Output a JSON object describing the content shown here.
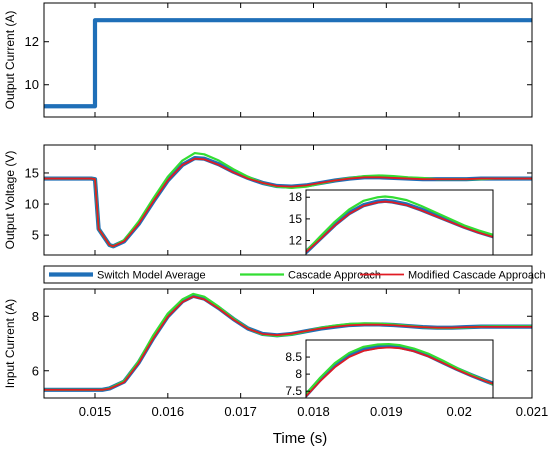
{
  "chart_data": {
    "type": "line",
    "xlabel": "Time (s)",
    "xlim": [
      0.0143,
      0.021
    ],
    "xticks": [
      0.015,
      0.016,
      0.017,
      0.018,
      0.019,
      0.02,
      0.021
    ],
    "xtick_labels": [
      "0.015",
      "0.016",
      "0.017",
      "0.018",
      "0.019",
      "0.02",
      "0.021"
    ],
    "legend": {
      "placement": "between panels 2 and 3",
      "entries": [
        {
          "name": "Switch Model Average",
          "color": "#1f6fb8"
        },
        {
          "name": "Cascade Approach",
          "color": "#33dd33"
        },
        {
          "name": "Modified Cascade Approach",
          "color": "#e01b24"
        }
      ]
    },
    "panels": [
      {
        "id": "output-current",
        "ylabel": "Output Current (A)",
        "ylim": [
          8.5,
          13.8
        ],
        "yticks": [
          10,
          12
        ],
        "series": [
          {
            "name": "Switch Model Average",
            "x": [
              0.0143,
              0.015,
              0.015,
              0.021
            ],
            "y": [
              9,
              9,
              13,
              13
            ]
          }
        ]
      },
      {
        "id": "output-voltage",
        "ylabel": "Output Voltage (V)",
        "ylim": [
          1.8,
          19.5
        ],
        "yticks": [
          5,
          10,
          15
        ],
        "series": [
          {
            "name": "Switch Model Average",
            "x": [
              0.0143,
              0.01495,
              0.015,
              0.01505,
              0.0152,
              0.01525,
              0.0154,
              0.0156,
              0.0158,
              0.016,
              0.0162,
              0.01637,
              0.0165,
              0.0167,
              0.0169,
              0.0171,
              0.0173,
              0.0175,
              0.0177,
              0.0179,
              0.0181,
              0.0183,
              0.0185,
              0.0187,
              0.0189,
              0.0191,
              0.0193,
              0.0195,
              0.0197,
              0.0199,
              0.0201,
              0.0203,
              0.0205,
              0.0207,
              0.021
            ],
            "y": [
              14.1,
              14.1,
              14.0,
              6.0,
              3.4,
              3.2,
              4.0,
              6.8,
              10.4,
              13.8,
              16.3,
              17.4,
              17.3,
              16.4,
              15.2,
              14.2,
              13.4,
              12.9,
              12.8,
              13.0,
              13.4,
              13.8,
              14.1,
              14.3,
              14.3,
              14.2,
              14.1,
              14.0,
              14.0,
              14.0,
              14.0,
              14.1,
              14.1,
              14.1,
              14.1
            ]
          },
          {
            "name": "Cascade Approach",
            "x": [
              0.0143,
              0.01495,
              0.015,
              0.01505,
              0.0152,
              0.01525,
              0.0154,
              0.0156,
              0.0158,
              0.016,
              0.0162,
              0.01637,
              0.0165,
              0.0167,
              0.0169,
              0.0171,
              0.0173,
              0.0175,
              0.0177,
              0.0179,
              0.0181,
              0.0183,
              0.0185,
              0.0187,
              0.0189,
              0.0191,
              0.0193,
              0.0195,
              0.0197,
              0.0199,
              0.0201,
              0.0203,
              0.0205,
              0.0207,
              0.021
            ],
            "y": [
              14.1,
              14.1,
              14.0,
              6.0,
              3.4,
              3.2,
              4.2,
              7.2,
              10.9,
              14.4,
              17.0,
              18.2,
              18.0,
              17.0,
              15.6,
              14.4,
              13.4,
              12.8,
              12.6,
              12.8,
              13.3,
              13.8,
              14.2,
              14.5,
              14.6,
              14.5,
              14.3,
              14.2,
              14.0,
              14.0,
              14.0,
              14.0,
              14.1,
              14.1,
              14.1
            ]
          },
          {
            "name": "Modified Cascade Approach",
            "x": [
              0.0143,
              0.01495,
              0.015,
              0.01505,
              0.0152,
              0.01525,
              0.0154,
              0.0156,
              0.0158,
              0.016,
              0.0162,
              0.01637,
              0.0165,
              0.0167,
              0.0169,
              0.0171,
              0.0173,
              0.0175,
              0.0177,
              0.0179,
              0.0181,
              0.0183,
              0.0185,
              0.0187,
              0.0189,
              0.0191,
              0.0193,
              0.0195,
              0.0197,
              0.0199,
              0.0201,
              0.0203,
              0.0205,
              0.0207,
              0.021
            ],
            "y": [
              14.1,
              14.1,
              14.0,
              6.0,
              3.4,
              3.2,
              4.0,
              6.8,
              10.4,
              13.8,
              16.3,
              17.3,
              17.2,
              16.3,
              15.1,
              14.1,
              13.4,
              12.9,
              12.8,
              13.0,
              13.4,
              13.8,
              14.1,
              14.3,
              14.3,
              14.2,
              14.1,
              14.0,
              14.0,
              14.0,
              14.0,
              14.1,
              14.1,
              14.1,
              14.1
            ]
          }
        ],
        "inset": {
          "xlim": [
            0.0179,
            0.0205
          ],
          "ylim": [
            10,
            19
          ],
          "yticks": [
            12,
            15,
            18
          ],
          "series": [
            {
              "name": "Switch Model Average",
              "x": [
                0.0179,
                0.0181,
                0.0183,
                0.0185,
                0.0187,
                0.0189,
                0.019,
                0.0191,
                0.0193,
                0.0195,
                0.0197,
                0.0199,
                0.0201,
                0.0203,
                0.0205
              ],
              "y": [
                10.4,
                12.3,
                14.2,
                15.8,
                16.9,
                17.4,
                17.5,
                17.4,
                17.0,
                16.3,
                15.5,
                14.7,
                13.9,
                13.2,
                12.6
              ]
            },
            {
              "name": "Cascade Approach",
              "x": [
                0.0179,
                0.0181,
                0.0183,
                0.0185,
                0.0187,
                0.0189,
                0.019,
                0.0191,
                0.0193,
                0.0195,
                0.0197,
                0.0199,
                0.0201,
                0.0203,
                0.0205
              ],
              "y": [
                10.5,
                12.6,
                14.6,
                16.3,
                17.5,
                18.0,
                18.1,
                18.0,
                17.6,
                16.8,
                15.9,
                15.0,
                14.1,
                13.4,
                12.8
              ]
            },
            {
              "name": "Modified Cascade Approach",
              "x": [
                0.0179,
                0.0181,
                0.0183,
                0.0185,
                0.0187,
                0.0189,
                0.019,
                0.0191,
                0.0193,
                0.0195,
                0.0197,
                0.0199,
                0.0201,
                0.0203,
                0.0205
              ],
              "y": [
                10.4,
                12.2,
                14.1,
                15.7,
                16.8,
                17.3,
                17.4,
                17.3,
                16.9,
                16.2,
                15.4,
                14.6,
                13.8,
                13.1,
                12.5
              ]
            }
          ]
        }
      },
      {
        "id": "input-current",
        "ylabel": "Input Current (A)",
        "ylim": [
          5.0,
          9.0
        ],
        "yticks": [
          6,
          8
        ],
        "series": [
          {
            "name": "Switch Model Average",
            "x": [
              0.0143,
              0.0151,
              0.0152,
              0.0154,
              0.0156,
              0.0158,
              0.016,
              0.0162,
              0.01635,
              0.0165,
              0.0167,
              0.0169,
              0.0171,
              0.0173,
              0.0175,
              0.0177,
              0.0179,
              0.0181,
              0.0183,
              0.0185,
              0.0187,
              0.0189,
              0.0191,
              0.0193,
              0.0195,
              0.0197,
              0.0199,
              0.0201,
              0.0203,
              0.0205,
              0.0207,
              0.021
            ],
            "y": [
              5.3,
              5.3,
              5.35,
              5.6,
              6.3,
              7.2,
              8.0,
              8.55,
              8.75,
              8.65,
              8.3,
              7.9,
              7.55,
              7.35,
              7.3,
              7.35,
              7.45,
              7.55,
              7.62,
              7.68,
              7.7,
              7.7,
              7.68,
              7.64,
              7.6,
              7.58,
              7.58,
              7.6,
              7.62,
              7.62,
              7.62,
              7.62
            ]
          },
          {
            "name": "Cascade Approach",
            "x": [
              0.0143,
              0.0151,
              0.0152,
              0.0154,
              0.0156,
              0.0158,
              0.016,
              0.0162,
              0.01635,
              0.0165,
              0.0167,
              0.0169,
              0.0171,
              0.0173,
              0.0175,
              0.0177,
              0.0179,
              0.0181,
              0.0183,
              0.0185,
              0.0187,
              0.0189,
              0.0191,
              0.0193,
              0.0195,
              0.0197,
              0.0199,
              0.0201,
              0.0203,
              0.0205,
              0.0207,
              0.021
            ],
            "y": [
              5.3,
              5.3,
              5.35,
              5.62,
              6.35,
              7.3,
              8.1,
              8.62,
              8.82,
              8.72,
              8.35,
              7.92,
              7.55,
              7.33,
              7.28,
              7.33,
              7.45,
              7.58,
              7.66,
              7.72,
              7.74,
              7.73,
              7.7,
              7.65,
              7.6,
              7.57,
              7.57,
              7.59,
              7.62,
              7.63,
              7.63,
              7.63
            ]
          },
          {
            "name": "Modified Cascade Approach",
            "x": [
              0.0143,
              0.0151,
              0.0152,
              0.0154,
              0.0156,
              0.0158,
              0.016,
              0.0162,
              0.01635,
              0.0165,
              0.0167,
              0.0169,
              0.0171,
              0.0173,
              0.0175,
              0.0177,
              0.0179,
              0.0181,
              0.0183,
              0.0185,
              0.0187,
              0.0189,
              0.0191,
              0.0193,
              0.0195,
              0.0197,
              0.0199,
              0.0201,
              0.0203,
              0.0205,
              0.0207,
              0.021
            ],
            "y": [
              5.3,
              5.3,
              5.34,
              5.58,
              6.28,
              7.18,
              7.98,
              8.52,
              8.72,
              8.62,
              8.28,
              7.88,
              7.54,
              7.35,
              7.31,
              7.36,
              7.46,
              7.55,
              7.62,
              7.67,
              7.69,
              7.69,
              7.67,
              7.63,
              7.6,
              7.58,
              7.58,
              7.6,
              7.61,
              7.61,
              7.61,
              7.61
            ]
          }
        ],
        "inset": {
          "xlim": [
            0.0179,
            0.0205
          ],
          "ylim": [
            7.3,
            9.0
          ],
          "yticks": [
            7.5,
            8,
            8.5
          ],
          "series": [
            {
              "name": "Switch Model Average",
              "x": [
                0.0179,
                0.0181,
                0.0183,
                0.0185,
                0.0187,
                0.0189,
                0.01905,
                0.0192,
                0.0194,
                0.0196,
                0.0198,
                0.02,
                0.0202,
                0.0204,
                0.0205
              ],
              "y": [
                7.38,
                7.85,
                8.25,
                8.55,
                8.72,
                8.8,
                8.82,
                8.8,
                8.7,
                8.55,
                8.35,
                8.15,
                7.97,
                7.8,
                7.72
              ]
            },
            {
              "name": "Cascade Approach",
              "x": [
                0.0179,
                0.0181,
                0.0183,
                0.0185,
                0.0187,
                0.0189,
                0.01905,
                0.0192,
                0.0194,
                0.0196,
                0.0198,
                0.02,
                0.0202,
                0.0204,
                0.0205
              ],
              "y": [
                7.42,
                7.9,
                8.32,
                8.62,
                8.8,
                8.87,
                8.88,
                8.85,
                8.75,
                8.6,
                8.4,
                8.18,
                7.98,
                7.8,
                7.7
              ]
            },
            {
              "name": "Modified Cascade Approach",
              "x": [
                0.0179,
                0.0181,
                0.0183,
                0.0185,
                0.0187,
                0.0189,
                0.01905,
                0.0192,
                0.0194,
                0.0196,
                0.0198,
                0.02,
                0.0202,
                0.0204,
                0.0205
              ],
              "y": [
                7.35,
                7.8,
                8.2,
                8.5,
                8.68,
                8.76,
                8.78,
                8.76,
                8.67,
                8.52,
                8.33,
                8.13,
                7.95,
                7.79,
                7.72
              ]
            }
          ]
        }
      }
    ]
  }
}
